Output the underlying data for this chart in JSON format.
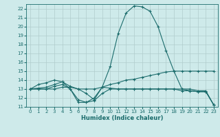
{
  "xlabel": "Humidex (Indice chaleur)",
  "bg_color": "#ceeaea",
  "grid_color": "#b0cccc",
  "line_color": "#1a6b6b",
  "xlim": [
    -0.5,
    23.5
  ],
  "ylim": [
    11,
    22.5
  ],
  "xticks": [
    0,
    1,
    2,
    3,
    4,
    5,
    6,
    7,
    8,
    9,
    10,
    11,
    12,
    13,
    14,
    15,
    16,
    17,
    18,
    19,
    20,
    21,
    22,
    23
  ],
  "yticks": [
    11,
    12,
    13,
    14,
    15,
    16,
    17,
    18,
    19,
    20,
    21,
    22
  ],
  "series": [
    {
      "x": [
        0,
        1,
        2,
        3,
        4,
        5,
        6,
        7,
        8,
        9,
        10,
        11,
        12,
        13,
        14,
        15,
        16,
        17,
        18,
        19,
        20,
        21,
        22,
        23
      ],
      "y": [
        13.0,
        13.5,
        13.7,
        14.0,
        13.8,
        13.0,
        11.5,
        11.5,
        12.0,
        13.2,
        15.5,
        19.2,
        21.5,
        22.3,
        22.2,
        21.7,
        20.0,
        17.3,
        15.0,
        13.0,
        12.8,
        12.7,
        12.7,
        11.2
      ]
    },
    {
      "x": [
        0,
        1,
        2,
        3,
        4,
        5,
        6,
        7,
        8,
        9,
        10,
        11,
        12,
        13,
        14,
        15,
        16,
        17,
        18,
        19,
        20,
        21,
        22,
        23
      ],
      "y": [
        13.0,
        13.1,
        13.2,
        13.5,
        13.8,
        13.3,
        13.0,
        13.0,
        13.0,
        13.2,
        13.5,
        13.7,
        14.0,
        14.1,
        14.3,
        14.5,
        14.7,
        14.9,
        15.0,
        15.0,
        15.0,
        15.0,
        15.0,
        15.0
      ]
    },
    {
      "x": [
        0,
        1,
        2,
        3,
        4,
        5,
        6,
        7,
        8,
        9,
        10,
        11,
        12,
        13,
        14,
        15,
        16,
        17,
        18,
        19,
        20,
        21,
        22,
        23
      ],
      "y": [
        13.0,
        13.0,
        13.0,
        13.0,
        13.2,
        13.2,
        13.0,
        12.5,
        11.8,
        13.2,
        13.1,
        13.0,
        13.0,
        13.0,
        13.0,
        13.0,
        13.0,
        13.0,
        13.0,
        12.8,
        12.8,
        12.7,
        12.7,
        11.2
      ]
    },
    {
      "x": [
        0,
        1,
        2,
        3,
        4,
        5,
        6,
        7,
        8,
        9,
        10,
        11,
        12,
        13,
        14,
        15,
        16,
        17,
        18,
        19,
        20,
        21,
        22,
        23
      ],
      "y": [
        13.0,
        13.0,
        13.0,
        13.3,
        13.5,
        13.0,
        11.8,
        11.5,
        11.7,
        12.5,
        13.0,
        13.0,
        13.0,
        13.0,
        13.0,
        13.0,
        13.0,
        13.0,
        13.0,
        13.0,
        13.0,
        12.8,
        12.8,
        11.2
      ]
    }
  ]
}
